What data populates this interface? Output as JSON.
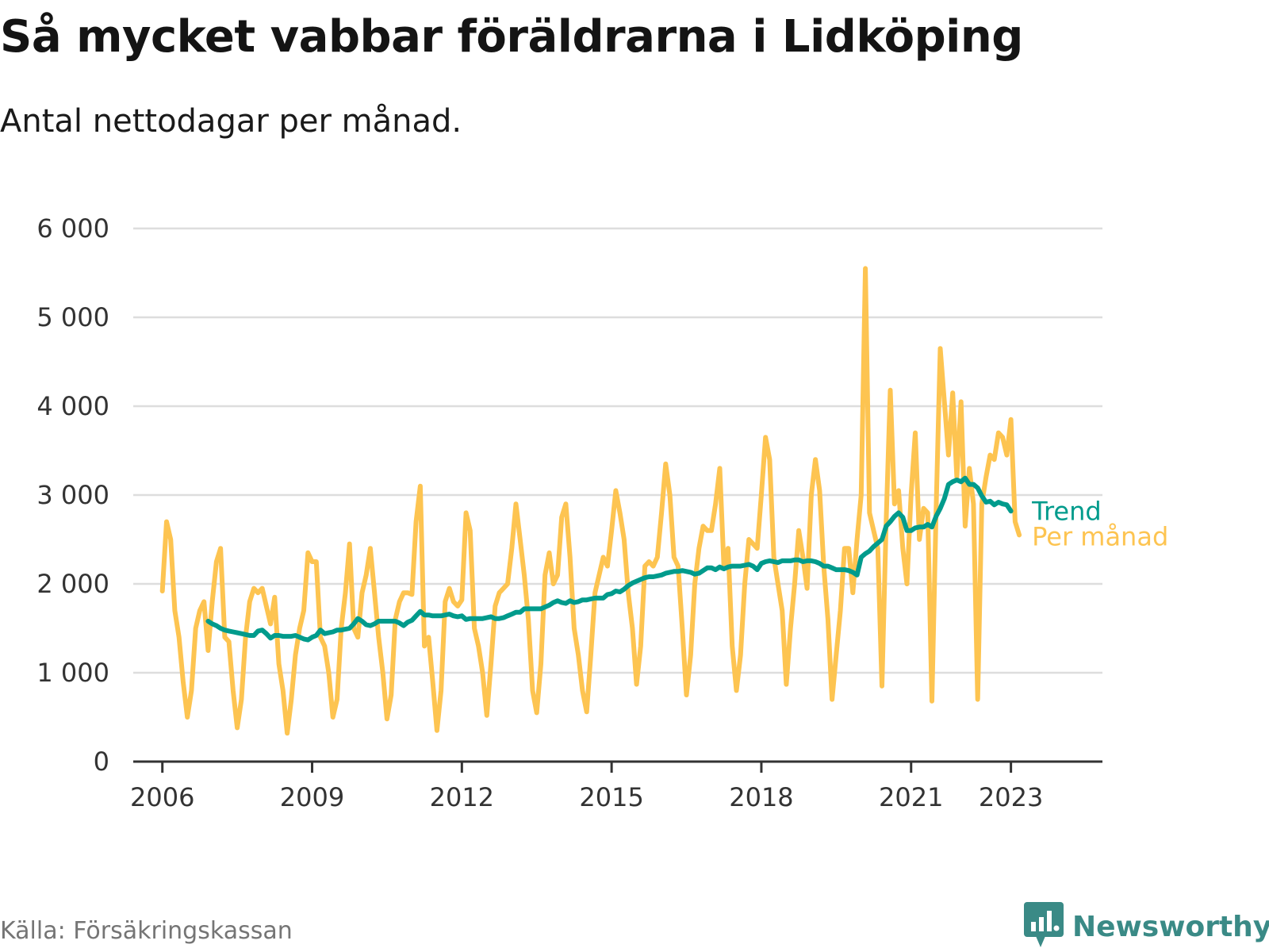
{
  "header": {
    "title": "Så mycket vabbar föräldrarna i Lidköping",
    "subtitle": "Antal nettodagar per månad."
  },
  "footer": {
    "source": "Källa: Försäkringskassan",
    "brand": "Newsworthy",
    "brand_icon": "bar-chart-speech-bubble-icon"
  },
  "colors": {
    "monthly": "#FDC451",
    "trend": "#009B8C",
    "grid": "#dddddd",
    "axis": "#333333"
  },
  "chart_data": {
    "type": "line",
    "title": "Så mycket vabbar föräldrarna i Lidköping",
    "subtitle": "Antal nettodagar per månad.",
    "xlabel": "",
    "ylabel": "",
    "ylim": [
      0,
      6000
    ],
    "xlim": [
      "2005-06",
      "2024-11"
    ],
    "grid": true,
    "legend": "inline-right",
    "y_ticks": [
      {
        "value": 0,
        "label": "0"
      },
      {
        "value": 1000,
        "label": "1 000"
      },
      {
        "value": 2000,
        "label": "2 000"
      },
      {
        "value": 3000,
        "label": "3 000"
      },
      {
        "value": 4000,
        "label": "4 000"
      },
      {
        "value": 5000,
        "label": "5 000"
      },
      {
        "value": 6000,
        "label": "6 000"
      }
    ],
    "x_ticks": [
      {
        "value": "2006-01",
        "label": "2006"
      },
      {
        "value": "2009-01",
        "label": "2009"
      },
      {
        "value": "2012-01",
        "label": "2012"
      },
      {
        "value": "2015-01",
        "label": "2015"
      },
      {
        "value": "2018-01",
        "label": "2018"
      },
      {
        "value": "2021-01",
        "label": "2021"
      },
      {
        "value": "2023-01",
        "label": "2023"
      }
    ],
    "series": [
      {
        "name": "Per månad",
        "start": "2006-01",
        "values": [
          1920,
          2700,
          2500,
          1700,
          1400,
          900,
          500,
          800,
          1500,
          1700,
          1800,
          1250,
          1800,
          2250,
          2400,
          1400,
          1350,
          800,
          380,
          700,
          1400,
          1800,
          1950,
          1900,
          1950,
          1750,
          1550,
          1850,
          1100,
          800,
          320,
          700,
          1200,
          1500,
          1700,
          2350,
          2250,
          2250,
          1400,
          1300,
          1000,
          500,
          700,
          1500,
          1900,
          2450,
          1500,
          1400,
          1900,
          2100,
          2400,
          1900,
          1400,
          1000,
          480,
          750,
          1600,
          1800,
          1900,
          1900,
          1880,
          2700,
          3100,
          1300,
          1400,
          900,
          350,
          800,
          1800,
          1950,
          1800,
          1750,
          1820,
          2800,
          2600,
          1500,
          1300,
          1000,
          520,
          1100,
          1750,
          1900,
          1950,
          2000,
          2400,
          2900,
          2500,
          2100,
          1600,
          800,
          550,
          1100,
          2100,
          2350,
          2000,
          2100,
          2750,
          2900,
          2300,
          1500,
          1200,
          800,
          560,
          1200,
          1900,
          2100,
          2300,
          2200,
          2600,
          3050,
          2800,
          2500,
          1900,
          1500,
          870,
          1300,
          2200,
          2250,
          2200,
          2300,
          2800,
          3350,
          3000,
          2300,
          2200,
          1500,
          750,
          1200,
          2000,
          2400,
          2650,
          2600,
          2600,
          2900,
          3300,
          2200,
          2400,
          1300,
          800,
          1200,
          2000,
          2500,
          2450,
          2400,
          3000,
          3650,
          3400,
          2300,
          2000,
          1700,
          870,
          1500,
          2000,
          2600,
          2300,
          1950,
          3000,
          3400,
          3050,
          2200,
          1600,
          700,
          1200,
          1700,
          2400,
          2400,
          1900,
          2500,
          3000,
          5550,
          2800,
          2600,
          2400,
          850,
          2700,
          4180,
          2900,
          3050,
          2400,
          2000,
          3000,
          3700,
          2500,
          2850,
          2800,
          680,
          2800,
          4650,
          4050,
          3450,
          4150,
          3200,
          4050,
          2650,
          3300,
          2900,
          700,
          2900,
          3200,
          3450,
          3400,
          3700,
          3650,
          3450,
          3850,
          2700,
          2550
        ]
      },
      {
        "name": "Trend",
        "start": "2006-12",
        "values": [
          1580,
          1550,
          1530,
          1500,
          1480,
          1470,
          1460,
          1450,
          1440,
          1430,
          1420,
          1420,
          1470,
          1480,
          1440,
          1390,
          1420,
          1420,
          1410,
          1410,
          1410,
          1420,
          1400,
          1380,
          1370,
          1400,
          1420,
          1480,
          1440,
          1450,
          1460,
          1480,
          1480,
          1490,
          1500,
          1550,
          1610,
          1580,
          1540,
          1530,
          1550,
          1580,
          1580,
          1580,
          1580,
          1580,
          1560,
          1530,
          1570,
          1590,
          1640,
          1690,
          1650,
          1650,
          1640,
          1640,
          1640,
          1650,
          1660,
          1640,
          1630,
          1640,
          1600,
          1610,
          1610,
          1610,
          1610,
          1620,
          1630,
          1610,
          1610,
          1620,
          1640,
          1660,
          1680,
          1680,
          1720,
          1720,
          1720,
          1720,
          1720,
          1740,
          1760,
          1790,
          1810,
          1790,
          1780,
          1810,
          1790,
          1800,
          1820,
          1820,
          1830,
          1840,
          1840,
          1840,
          1880,
          1890,
          1920,
          1910,
          1940,
          1980,
          2010,
          2030,
          2050,
          2070,
          2080,
          2080,
          2090,
          2100,
          2120,
          2130,
          2140,
          2140,
          2150,
          2140,
          2130,
          2110,
          2120,
          2150,
          2180,
          2180,
          2160,
          2190,
          2170,
          2190,
          2200,
          2200,
          2200,
          2210,
          2220,
          2200,
          2160,
          2230,
          2250,
          2260,
          2250,
          2240,
          2260,
          2260,
          2260,
          2270,
          2270,
          2250,
          2260,
          2260,
          2250,
          2230,
          2200,
          2200,
          2180,
          2160,
          2160,
          2160,
          2150,
          2130,
          2100,
          2300,
          2340,
          2370,
          2420,
          2460,
          2500,
          2650,
          2700,
          2760,
          2800,
          2750,
          2600,
          2600,
          2630,
          2640,
          2640,
          2670,
          2640,
          2760,
          2850,
          2960,
          3120,
          3150,
          3170,
          3150,
          3190,
          3120,
          3120,
          3080,
          2990,
          2920,
          2930,
          2890,
          2920,
          2900,
          2890,
          2820
        ]
      }
    ]
  }
}
